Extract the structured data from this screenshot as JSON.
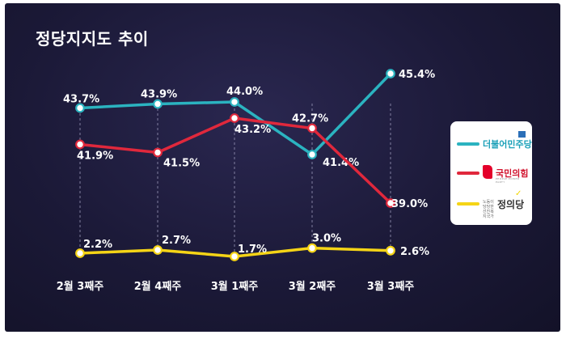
{
  "title": "정당지지도 추이",
  "chart_data": {
    "type": "line",
    "categories": [
      "2월 3째주",
      "2월 4째주",
      "3월 1째주",
      "3월 2째주",
      "3월 3째주"
    ],
    "series": [
      {
        "name": "더불어민주당",
        "color": "#2bb3c0",
        "values": [
          43.7,
          43.9,
          44.0,
          41.4,
          45.4
        ],
        "labels": [
          "43.7%",
          "43.9%",
          "44.0%",
          "41.4%",
          "45.4%"
        ]
      },
      {
        "name": "국민의힘",
        "color": "#e0283c",
        "values": [
          41.9,
          41.5,
          43.2,
          42.7,
          39.0
        ],
        "labels": [
          "41.9%",
          "41.5%",
          "43.2%",
          "42.7%",
          "39.0%"
        ]
      },
      {
        "name": "정의당",
        "color": "#f5d416",
        "values": [
          2.2,
          2.7,
          1.7,
          3.0,
          2.6
        ],
        "labels": [
          "2.2%",
          "2.7%",
          "1.7%",
          "3.0%",
          "2.6%"
        ]
      }
    ],
    "axis_break": true,
    "grid": "vertical dashed",
    "legend_position": "right"
  },
  "legend": {
    "dem_name": "더불어민주당",
    "ppp_name": "국민의힘",
    "ppp_sub": "PEOPLE POWER PARTY",
    "justice_name": "정의당",
    "justice_tag": "노동이 당당한 선진복지국가"
  }
}
